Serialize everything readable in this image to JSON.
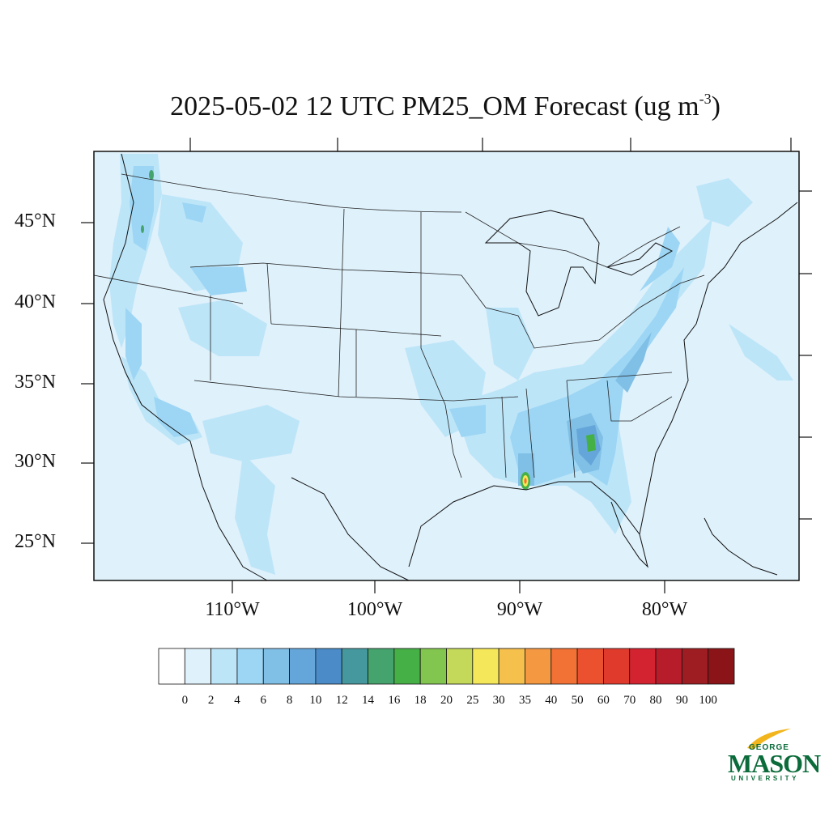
{
  "title": {
    "text": "2025-05-02 12 UTC PM25_OM Forecast (ug m",
    "exponent": "-3",
    "suffix": ")"
  },
  "map": {
    "projection": "Lambert conformal",
    "region": "Contiguous United States",
    "background_level": "0-2",
    "lat_labels": [
      "45°N",
      "40°N",
      "35°N",
      "30°N",
      "25°N"
    ],
    "lon_labels": [
      "110°W",
      "100°W",
      "90°W",
      "80°W"
    ]
  },
  "colorbar": {
    "levels": [
      "0",
      "2",
      "4",
      "6",
      "8",
      "10",
      "12",
      "14",
      "16",
      "18",
      "20",
      "25",
      "30",
      "35",
      "40",
      "50",
      "60",
      "70",
      "80",
      "90",
      "100"
    ],
    "colors": [
      "#ffffff",
      "#dff1fb",
      "#bde5f8",
      "#9dd6f4",
      "#80bfe6",
      "#64a6da",
      "#4a8bc8",
      "#45999e",
      "#45a46e",
      "#45b046",
      "#82c650",
      "#c4d95a",
      "#f5e75a",
      "#f6c04d",
      "#f59842",
      "#f27134",
      "#eb512f",
      "#e03a2d",
      "#d32230",
      "#b71c2a",
      "#9e1d22",
      "#8a1418"
    ]
  },
  "logo": {
    "line1": "GEORGE",
    "line2": "MASON",
    "line3": "UNIVERSITY"
  }
}
